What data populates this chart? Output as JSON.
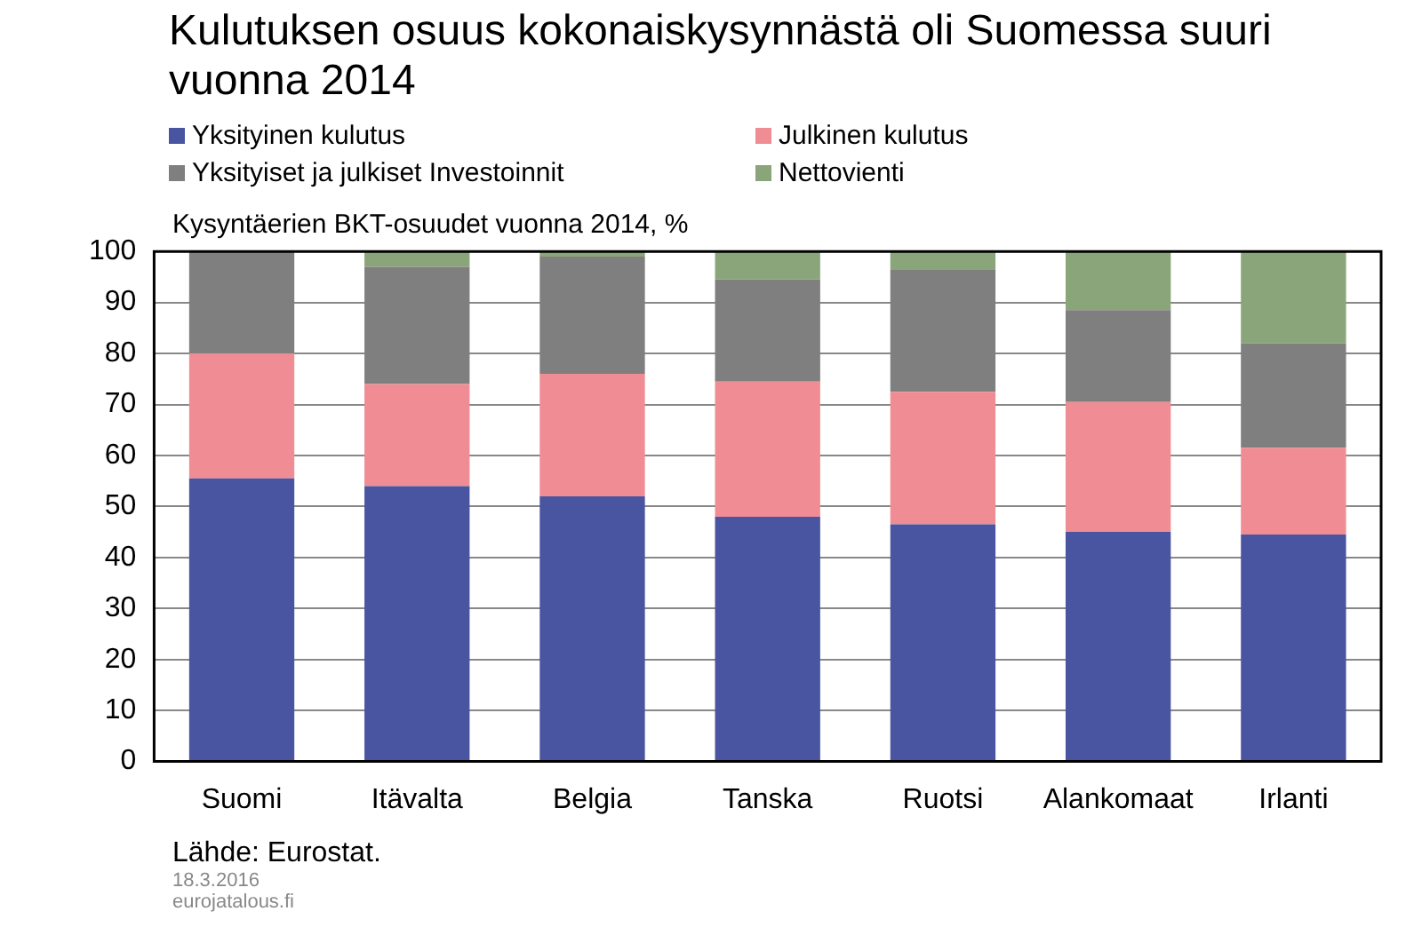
{
  "chart_data": {
    "type": "bar",
    "stacked": true,
    "title": "Kulutuksen osuus kokonaiskysynnästä oli Suomessa suuri vuonna 2014",
    "ylabel": "Kysyntäerien BKT-osuudet vuonna 2014, %",
    "categories": [
      "Suomi",
      "Itävalta",
      "Belgia",
      "Tanska",
      "Ruotsi",
      "Alankomaat",
      "Irlanti"
    ],
    "series": [
      {
        "name": "Yksityinen kulutus",
        "color": "#4a55a2",
        "values": [
          55.5,
          54,
          52,
          48,
          46.5,
          45,
          44.5
        ]
      },
      {
        "name": "Julkinen kulutus",
        "color": "#f08c93",
        "values": [
          24.5,
          20,
          24,
          26.5,
          26,
          25.5,
          17
        ]
      },
      {
        "name": "Yksityiset ja julkiset Investoinnit",
        "color": "#7f7f7f",
        "values": [
          20,
          23,
          23,
          20,
          24,
          18,
          20.5
        ]
      },
      {
        "name": "Nettovienti",
        "color": "#8aa57a",
        "values": [
          0,
          3,
          1,
          5.5,
          3.5,
          11.5,
          18
        ]
      }
    ],
    "ylim": [
      0,
      100
    ],
    "yticks": [
      0,
      10,
      20,
      30,
      40,
      50,
      60,
      70,
      80,
      90,
      100
    ],
    "grid": "y",
    "legend": "top",
    "annotations": [
      "Lähde: Eurostat.",
      "18.3.2016",
      "eurojatalous.fi"
    ]
  }
}
